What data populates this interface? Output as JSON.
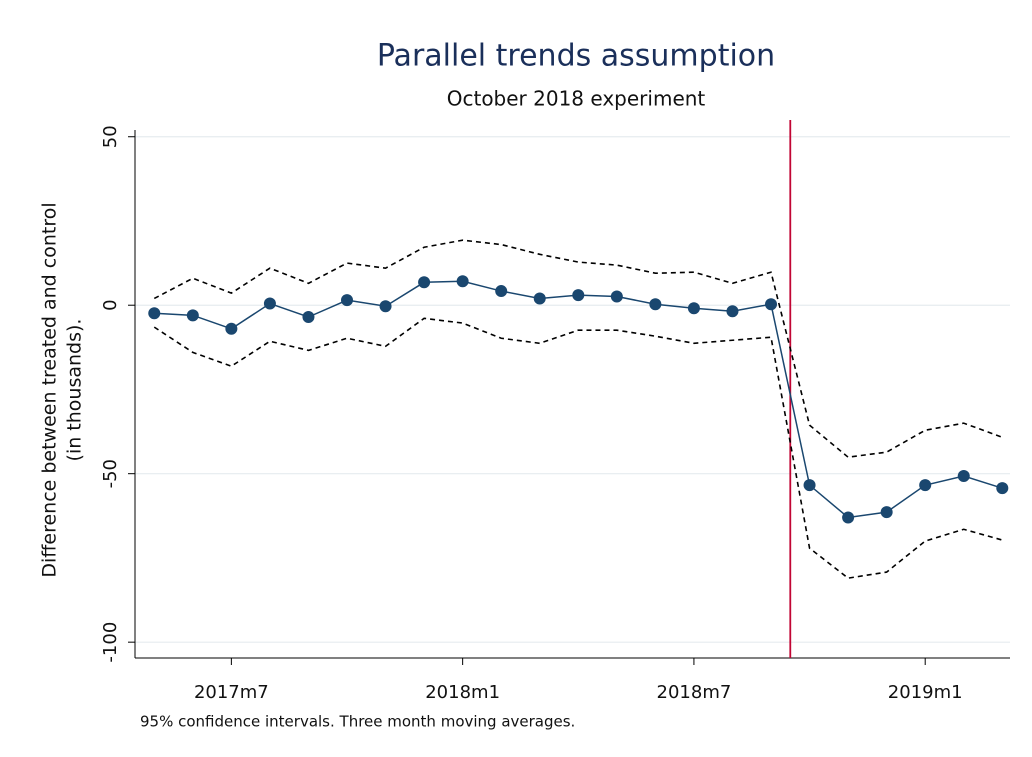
{
  "chart_data": {
    "type": "line",
    "title": "Parallel trends assumption",
    "subtitle": "October 2018 experiment",
    "ylabel": [
      "Difference between treated and control",
      "(in thousands)."
    ],
    "note": "95% confidence intervals. Three month moving averages.",
    "x": [
      688,
      689,
      690,
      691,
      692,
      693,
      694,
      695,
      696,
      697,
      698,
      699,
      700,
      701,
      702,
      703,
      704,
      705,
      706,
      707,
      708,
      709,
      710
    ],
    "series": [
      {
        "name": "upper",
        "color": "#000000",
        "dashed": true,
        "values": [
          2,
          8,
          3.6,
          11,
          6.5,
          12.5,
          11,
          17.2,
          19.3,
          18,
          15.1,
          12.8,
          11.9,
          9.5,
          9.8,
          6.5,
          9.8,
          -35.6,
          -45.1,
          -43.6,
          -37.1,
          -35,
          -39.2
        ]
      },
      {
        "name": "lower",
        "color": "#000000",
        "dashed": true,
        "values": [
          -6.5,
          -14,
          -18.1,
          -10.7,
          -13.4,
          -9.8,
          -12.2,
          -3.9,
          -5.3,
          -9.8,
          -11.3,
          -7.4,
          -7.4,
          -9.2,
          -11.3,
          -10.4,
          -9.5,
          -72.1,
          -81,
          -79.2,
          -70,
          -66.5,
          -69.7
        ]
      },
      {
        "name": "estimate",
        "color": "#1a476f",
        "markers": true,
        "values": [
          -2.4,
          -3,
          -7,
          0.5,
          -3.5,
          1.5,
          -0.3,
          6.8,
          7.1,
          4.2,
          2,
          3,
          2.6,
          0.3,
          -0.9,
          -1.8,
          0.3,
          -53.4,
          -63,
          -61.4,
          -53.4,
          -50.7,
          -54.3
        ]
      }
    ],
    "vline": {
      "x": 704.5,
      "color": "#c10534"
    },
    "xlim": [
      687.5,
      710.2
    ],
    "xticks": [
      {
        "value": 690,
        "label": "2017m7"
      },
      {
        "value": 696,
        "label": "2018m1"
      },
      {
        "value": 702,
        "label": "2018m7"
      },
      {
        "value": 708,
        "label": "2019m1"
      }
    ],
    "ylim": [
      -104.7,
      52
    ],
    "yticks": [
      50,
      0,
      -50,
      -100
    ],
    "grid": true
  }
}
